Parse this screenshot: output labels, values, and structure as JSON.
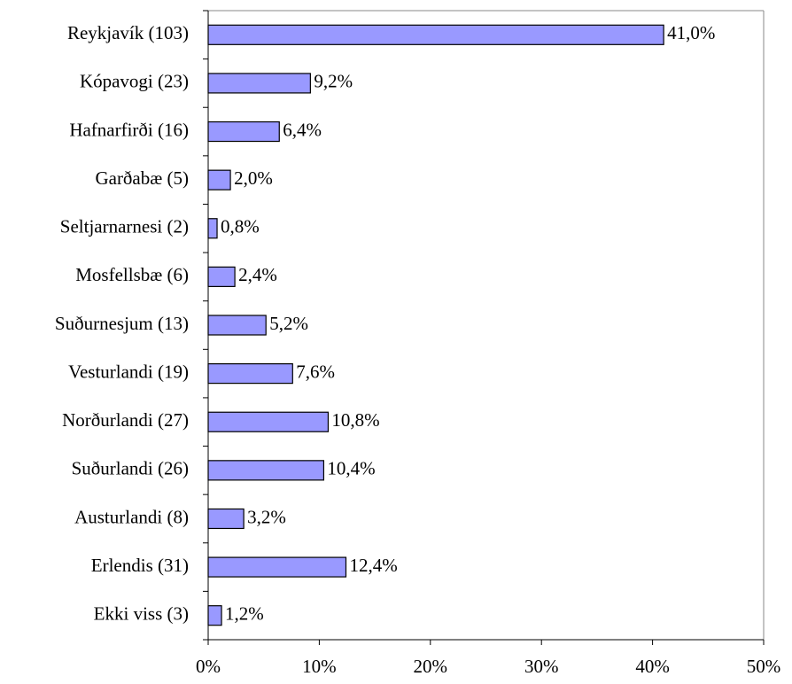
{
  "chart_data": {
    "type": "bar",
    "orientation": "horizontal",
    "categories": [
      "Reykjavík (103)",
      "Kópavogi (23)",
      "Hafnarfirði (16)",
      "Garðabæ (5)",
      "Seltjarnarnesi (2)",
      "Mosfellsbæ (6)",
      "Suðurnesjum (13)",
      "Vesturlandi (19)",
      "Norðurlandi (27)",
      "Suðurlandi (26)",
      "Austurlandi (8)",
      "Erlendis (31)",
      "Ekki viss (3)"
    ],
    "values": [
      41.0,
      9.2,
      6.4,
      2.0,
      0.8,
      2.4,
      5.2,
      7.6,
      10.8,
      10.4,
      3.2,
      12.4,
      1.2
    ],
    "value_labels": [
      "41,0%",
      "9,2%",
      "6,4%",
      "2,0%",
      "0,8%",
      "2,4%",
      "5,2%",
      "7,6%",
      "10,8%",
      "10,4%",
      "3,2%",
      "12,4%",
      "1,2%"
    ],
    "color": "#9999ff",
    "xlim": [
      0,
      50
    ],
    "xticks": [
      {
        "value": 0,
        "label": "0%"
      },
      {
        "value": 10,
        "label": "10%"
      },
      {
        "value": 20,
        "label": "20%"
      },
      {
        "value": 30,
        "label": "30%"
      },
      {
        "value": 40,
        "label": "40%"
      },
      {
        "value": 50,
        "label": "50%"
      }
    ]
  }
}
